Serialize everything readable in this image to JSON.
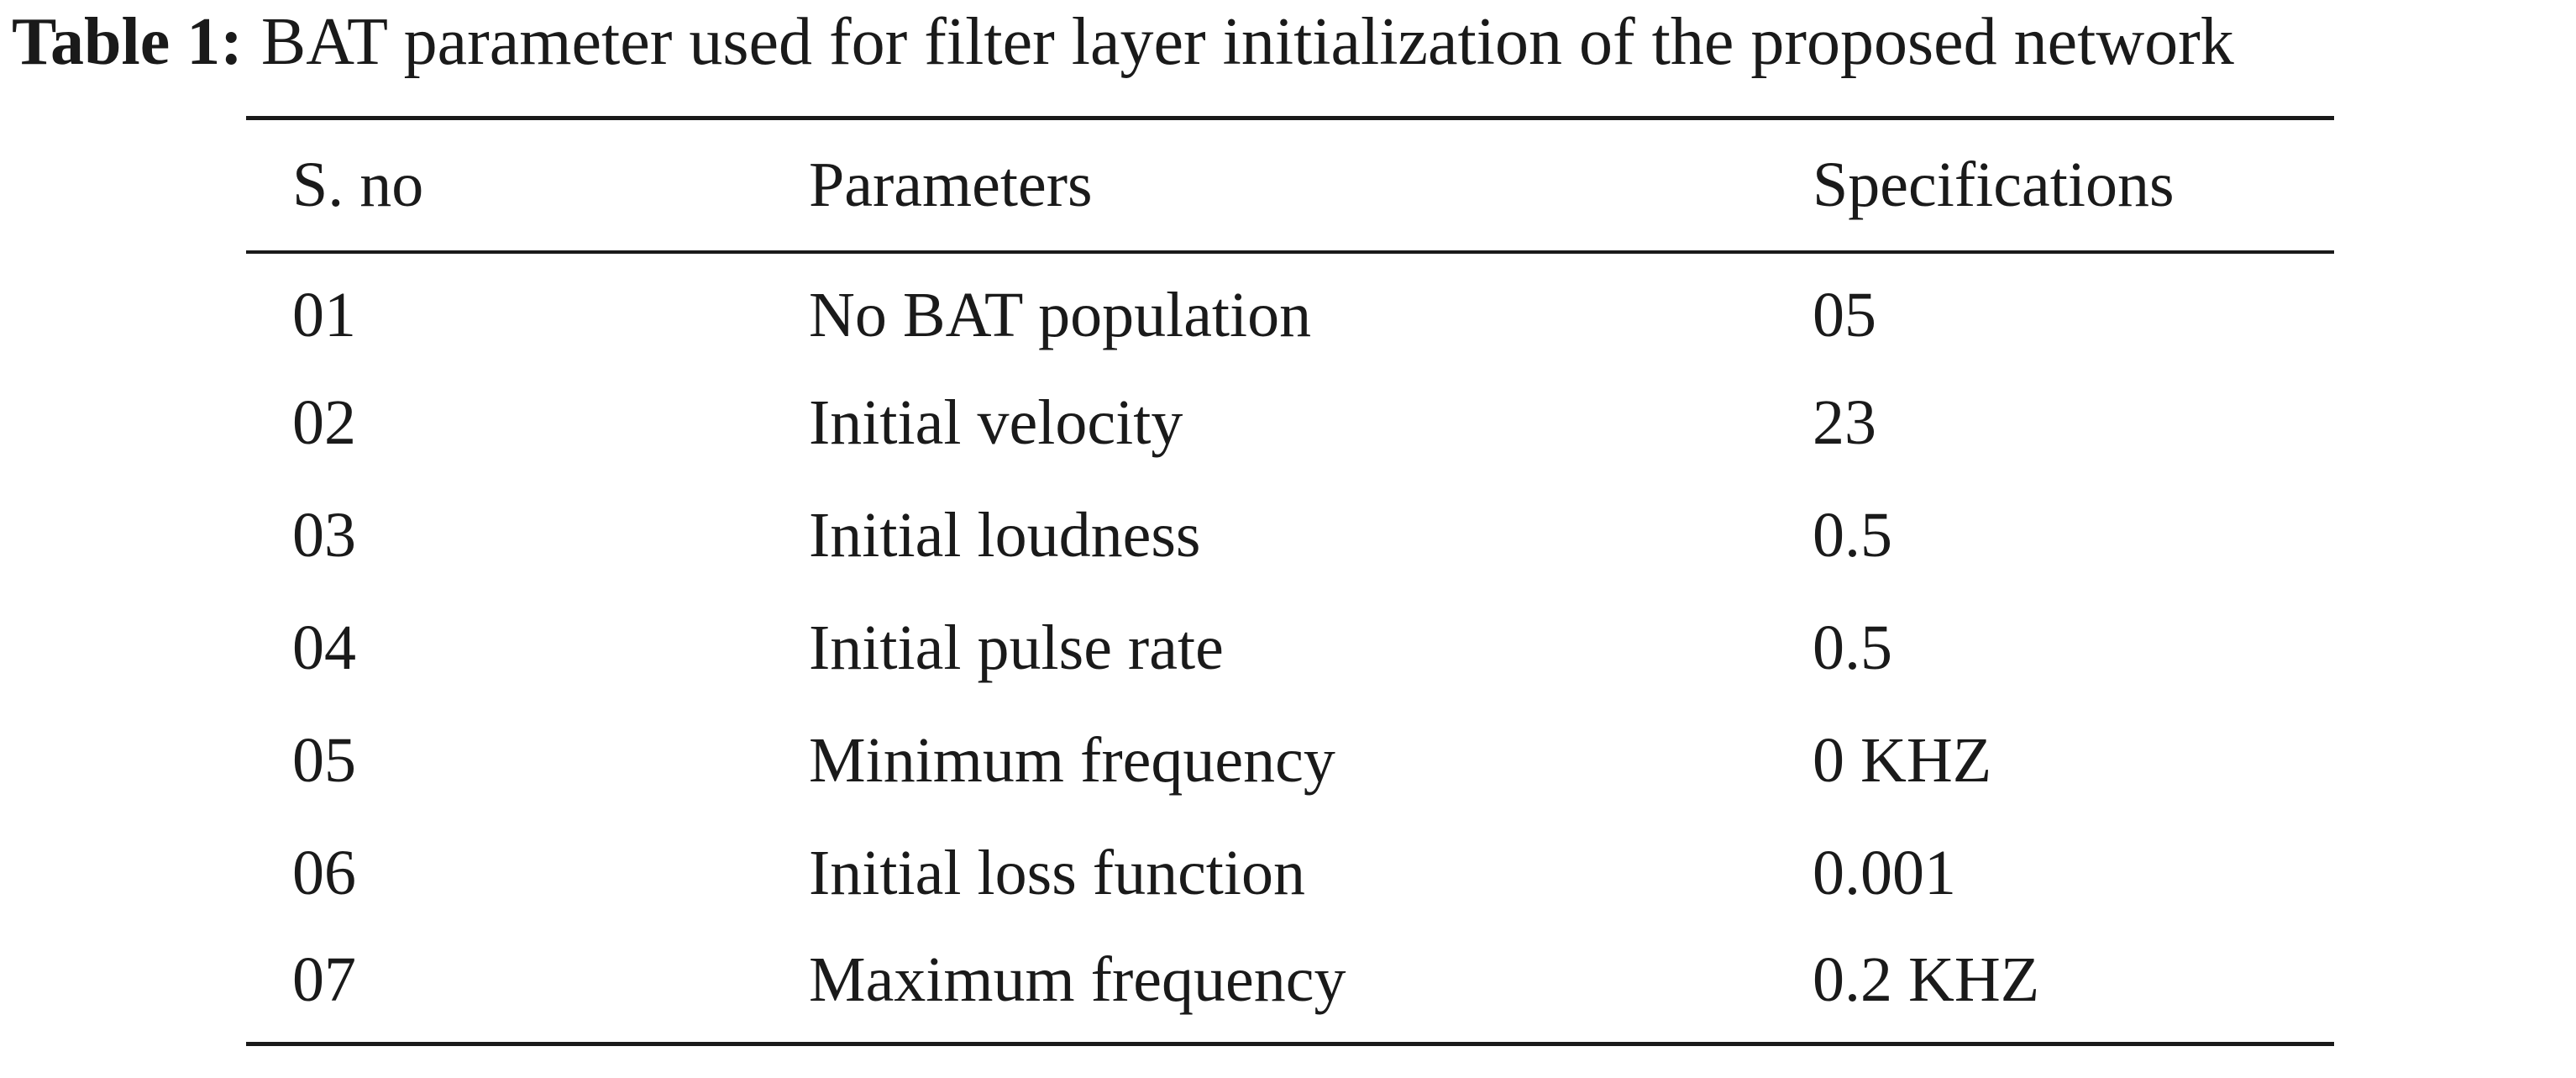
{
  "caption": {
    "label": "Table 1:",
    "text": "BAT parameter used for filter layer initialization of the proposed network"
  },
  "table": {
    "headers": [
      "S. no",
      "Parameters",
      "Specifications"
    ],
    "rows": [
      [
        "01",
        "No BAT population",
        "05"
      ],
      [
        "02",
        "Initial velocity",
        "23"
      ],
      [
        "03",
        "Initial loudness",
        "0.5"
      ],
      [
        "04",
        "Initial pulse rate",
        "0.5"
      ],
      [
        "05",
        "Minimum frequency",
        "0 KHZ"
      ],
      [
        "06",
        "Initial loss function",
        "0.001"
      ],
      [
        "07",
        "Maximum frequency",
        "0.2 KHZ"
      ]
    ]
  }
}
